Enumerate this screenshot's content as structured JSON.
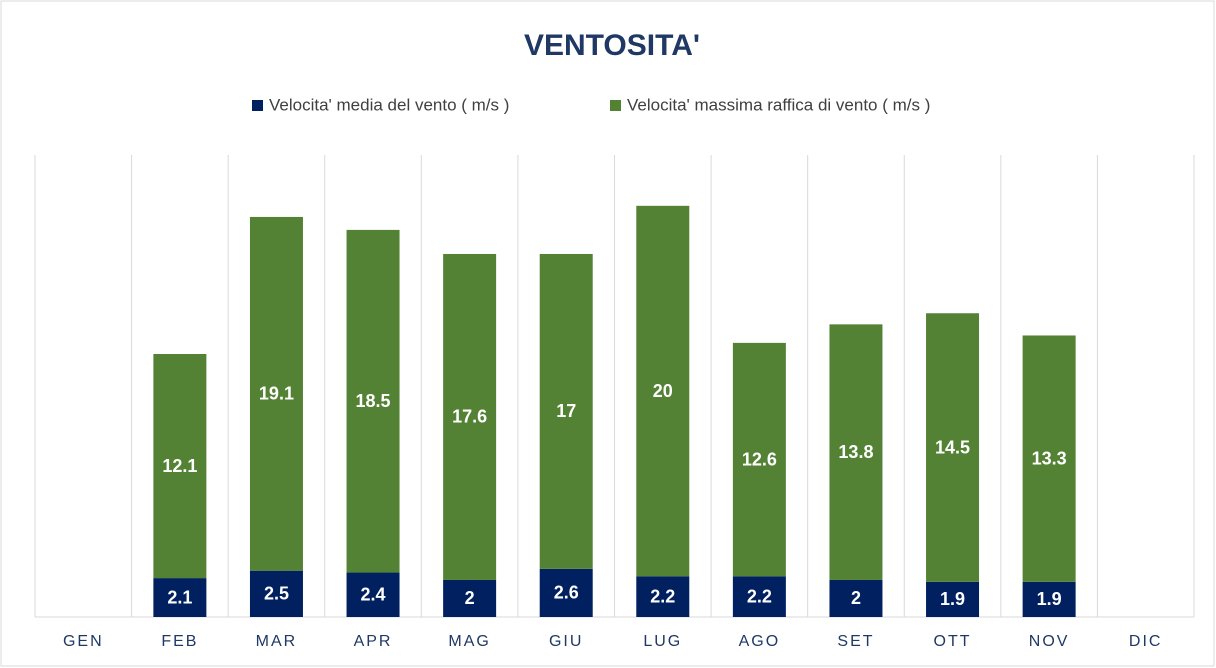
{
  "chart_data": {
    "type": "stacked_bar",
    "title": "VENTOSITA'",
    "categories": [
      "GEN",
      "FEB",
      "MAR",
      "APR",
      "MAG",
      "GIU",
      "LUG",
      "AGO",
      "SET",
      "OTT",
      "NOV",
      "DIC"
    ],
    "series": [
      {
        "name": "Velocita' media del vento ( m/s )",
        "color": "#002060",
        "values": [
          null,
          2.1,
          2.5,
          2.4,
          2,
          2.6,
          2.2,
          2.2,
          2,
          1.9,
          1.9,
          null
        ]
      },
      {
        "name": "Velocita' massima raffica di vento ( m/s )",
        "color": "#548235",
        "values": [
          null,
          12.1,
          19.1,
          18.5,
          17.6,
          17,
          20,
          12.6,
          13.8,
          14.5,
          13.3,
          null
        ]
      }
    ],
    "legend": "top"
  }
}
